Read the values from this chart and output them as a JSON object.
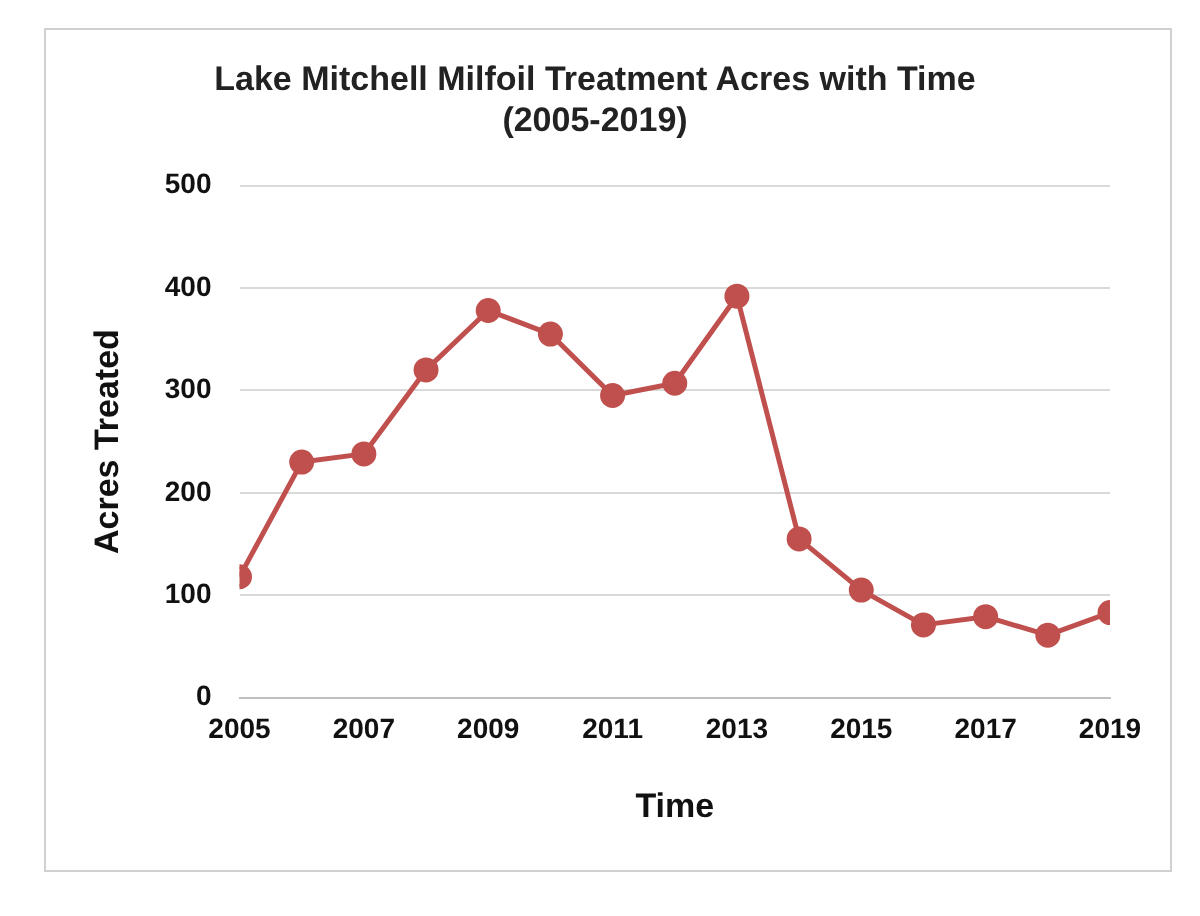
{
  "chart_data": {
    "type": "line",
    "title": "Lake Mitchell Milfoil Treatment Acres with Time\n(2005-2019)",
    "xlabel": "Time",
    "ylabel": "Acres Treated",
    "x": [
      2005,
      2006,
      2007,
      2008,
      2009,
      2010,
      2011,
      2012,
      2013,
      2014,
      2015,
      2016,
      2017,
      2018,
      2019
    ],
    "series": [
      {
        "color": "#c0504d",
        "values": [
          118,
          230,
          238,
          320,
          378,
          355,
          295,
          307,
          392,
          155,
          105,
          71,
          79,
          61,
          83
        ]
      }
    ],
    "xlim": [
      2005,
      2019
    ],
    "xticks": [
      2005,
      2007,
      2009,
      2011,
      2013,
      2015,
      2017,
      2019
    ],
    "ylim": [
      0,
      500
    ],
    "yticks": [
      0,
      100,
      200,
      300,
      400,
      500
    ],
    "grid": "y",
    "legend": false,
    "marker": "circle",
    "line_style": "solid"
  }
}
